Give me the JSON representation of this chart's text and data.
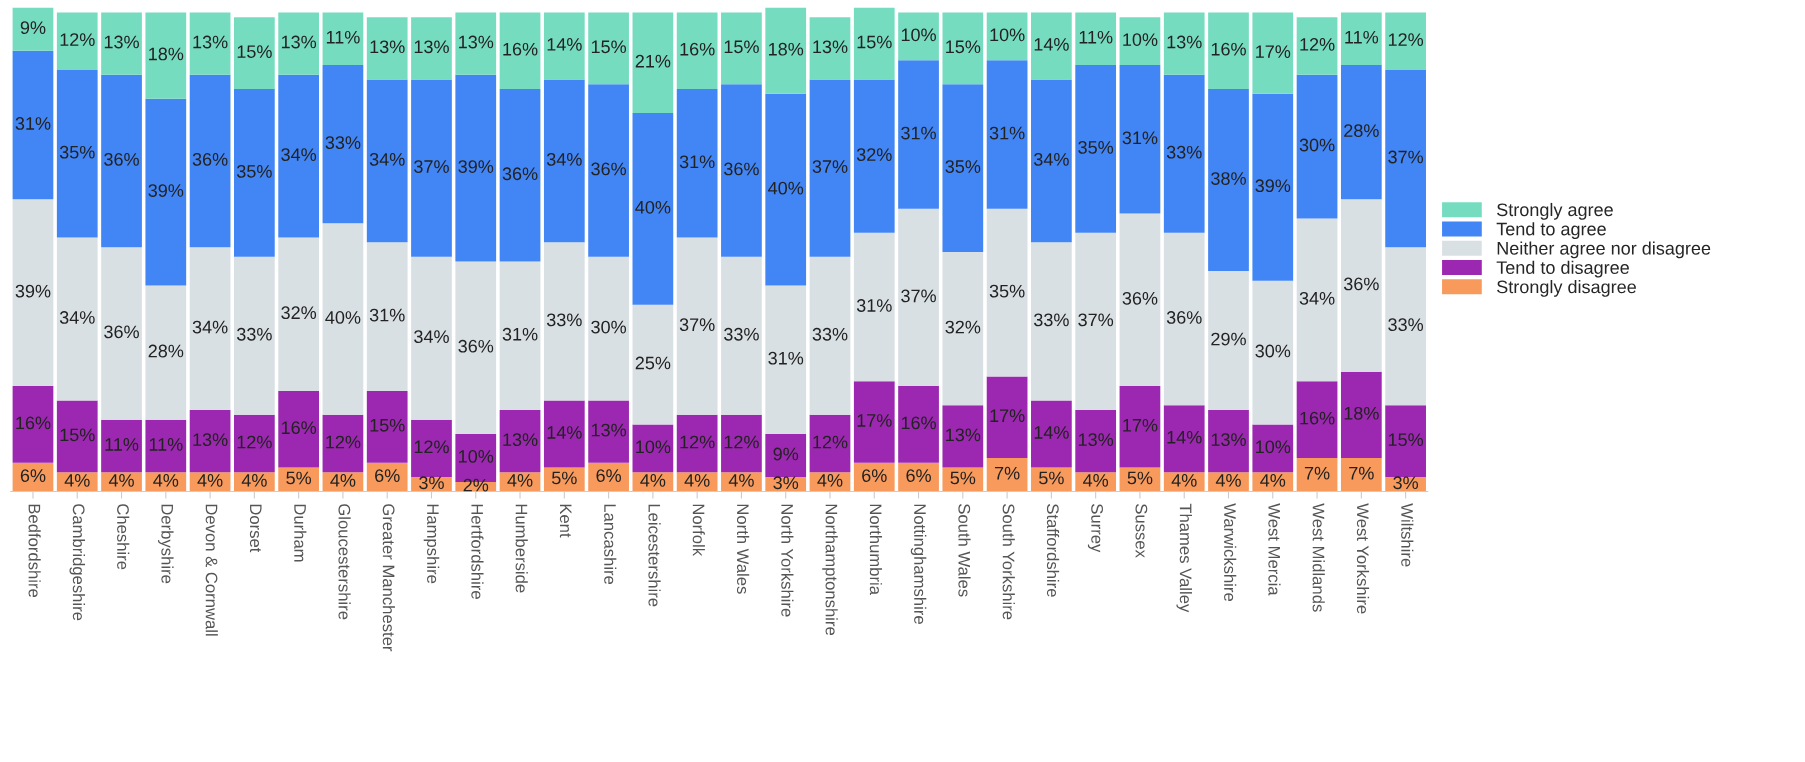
{
  "chart_data": {
    "type": "bar",
    "stacked": true,
    "legend": "right",
    "grid": false,
    "categories": [
      "Bedfordshire",
      "Cambridgeshire",
      "Cheshire",
      "Derbyshire",
      "Devon & Cornwall",
      "Dorset",
      "Durham",
      "Gloucestershire",
      "Greater Manchester",
      "Hampshire",
      "Hertfordshire",
      "Humberside",
      "Kent",
      "Lancashire",
      "Leicestershire",
      "Norfolk",
      "North Wales",
      "North Yorkshire",
      "Northamptonshire",
      "Northumbria",
      "Nottinghamshire",
      "South Wales",
      "South Yorkshire",
      "Staffordshire",
      "Surrey",
      "Sussex",
      "Thames Valley",
      "Warwickshire",
      "West Mercia",
      "West Midlands",
      "West Yorkshire",
      "Wiltshire"
    ],
    "series": [
      {
        "name": "Strongly disagree",
        "color": "#f79a5c",
        "values": [
          6,
          4,
          4,
          4,
          4,
          4,
          5,
          4,
          6,
          3,
          2,
          4,
          5,
          6,
          4,
          4,
          4,
          3,
          4,
          6,
          6,
          5,
          7,
          5,
          4,
          5,
          4,
          4,
          4,
          7,
          7,
          3
        ],
        "value_labels": [
          "6%",
          "4%",
          "4%",
          "4%",
          "4%",
          "4%",
          "5%",
          "4%",
          "6%",
          "3%",
          "2%",
          "4%",
          "5%",
          "6%",
          "4%",
          "4%",
          "4%",
          "3%",
          "4%",
          "6%",
          "6%",
          "5%",
          "7%",
          "5%",
          "4%",
          "5%",
          "4%",
          "4%",
          "4%",
          "7%",
          "7%",
          "3%"
        ]
      },
      {
        "name": "Tend to disagree",
        "color": "#9c27b0",
        "values": [
          16,
          15,
          11,
          11,
          13,
          12,
          16,
          12,
          15,
          12,
          10,
          13,
          14,
          13,
          10,
          12,
          12,
          9,
          12,
          17,
          16,
          13,
          17,
          14,
          13,
          17,
          14,
          13,
          10,
          16,
          18,
          15
        ],
        "value_labels": [
          "16%",
          "15%",
          "11%",
          "11%",
          "13%",
          "12%",
          "16%",
          "12%",
          "15%",
          "12%",
          "10%",
          "13%",
          "14%",
          "13%",
          "10%",
          "12%",
          "12%",
          "9%",
          "12%",
          "17%",
          "16%",
          "13%",
          "17%",
          "14%",
          "13%",
          "17%",
          "14%",
          "13%",
          "10%",
          "16%",
          "18%",
          "15%"
        ]
      },
      {
        "name": "Neither agree nor disagree",
        "color": "#d9e0e4",
        "values": [
          39,
          34,
          36,
          28,
          34,
          33,
          32,
          40,
          31,
          34,
          36,
          31,
          33,
          30,
          25,
          37,
          33,
          31,
          33,
          31,
          37,
          32,
          35,
          33,
          37,
          36,
          36,
          29,
          30,
          34,
          36,
          33
        ],
        "value_labels": [
          "39%",
          "34%",
          "36%",
          "28%",
          "34%",
          "33%",
          "32%",
          "40%",
          "31%",
          "34%",
          "36%",
          "31%",
          "33%",
          "30%",
          "25%",
          "37%",
          "33%",
          "31%",
          "33%",
          "31%",
          "37%",
          "32%",
          "35%",
          "33%",
          "37%",
          "36%",
          "36%",
          "29%",
          "30%",
          "34%",
          "36%",
          "33%"
        ]
      },
      {
        "name": "Tend to agree",
        "color": "#4285f4",
        "values": [
          31,
          35,
          36,
          39,
          36,
          35,
          34,
          33,
          34,
          37,
          39,
          36,
          34,
          36,
          40,
          31,
          36,
          40,
          37,
          32,
          31,
          35,
          31,
          34,
          35,
          31,
          33,
          38,
          39,
          30,
          28,
          37
        ],
        "value_labels": [
          "31%",
          "35%",
          "36%",
          "39%",
          "36%",
          "35%",
          "34%",
          "33%",
          "34%",
          "37%",
          "39%",
          "36%",
          "34%",
          "36%",
          "40%",
          "31%",
          "36%",
          "40%",
          "37%",
          "32%",
          "31%",
          "35%",
          "31%",
          "34%",
          "35%",
          "31%",
          "33%",
          "38%",
          "39%",
          "30%",
          "28%",
          "37%"
        ]
      },
      {
        "name": "Strongly agree",
        "color": "#76dcc0",
        "values": [
          9,
          12,
          13,
          18,
          13,
          15,
          13,
          11,
          13,
          13,
          13,
          16,
          14,
          15,
          21,
          16,
          15,
          18,
          13,
          15,
          10,
          15,
          10,
          14,
          11,
          10,
          13,
          16,
          17,
          12,
          11,
          12
        ],
        "value_labels": [
          "9%",
          "12%",
          "13%",
          "18%",
          "13%",
          "15%",
          "13%",
          "11%",
          "13%",
          "13%",
          "13%",
          "16%",
          "14%",
          "15%",
          "21%",
          "16%",
          "15%",
          "18%",
          "13%",
          "15%",
          "10%",
          "15%",
          "10%",
          "14%",
          "11%",
          "10%",
          "13%",
          "16%",
          "17%",
          "12%",
          "11%",
          "12%"
        ]
      }
    ]
  }
}
